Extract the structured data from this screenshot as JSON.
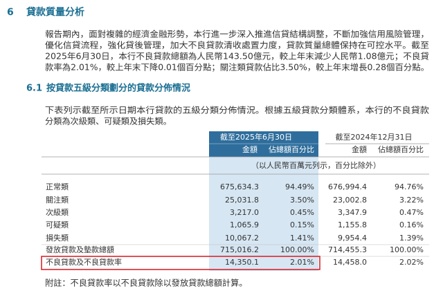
{
  "section": {
    "number": "6",
    "title": "貸款質量分析"
  },
  "paragraph1": [
    "報告期內，面對複雜的經濟金融形勢，本行進一步深入推進信貸結構調整，不斷加強信用風險管理，",
    "優化信貸流程，強化貸後管理，加大不良貸款清收處置力度，貸款質量總體保持在可控水平。截至",
    "2025年6月30日，本行不良貸款總額為人民幣143.50億元，較上年末減少人民幣1.08億元；不良貸",
    "款率為2.01%，較上年末下降0.01個百分點；關注類貸款佔比3.50%，較上年末增長0.28個百分點。"
  ],
  "subsection": {
    "number": "6.1",
    "title": "按貸款五級分類劃分的貸款分佈情況"
  },
  "paragraph2": [
    "下表列示截至所示日期本行貸款的五級分類分佈情況。根據五級貸款分類體系，本行的不良貸款",
    "分類為次級類、可疑類及損失類。"
  ],
  "table": {
    "period_headers": [
      "截至2025年6月30日",
      "截至2024年12月31日"
    ],
    "column_headers": [
      "金額",
      "佔總額百分比",
      "金額",
      "佔總額百分比"
    ],
    "unit": "（以人民幣百萬元列示，百分比除外）",
    "rows": [
      [
        "正常類",
        "675,634.3",
        "94.49%",
        "676,994.4",
        "94.76%"
      ],
      [
        "關注類",
        "25,031.8",
        "3.50%",
        "23,002.8",
        "3.22%"
      ],
      [
        "次級類",
        "3,217.0",
        "0.45%",
        "3,347.9",
        "0.47%"
      ],
      [
        "可疑類",
        "1,065.9",
        "0.15%",
        "1,155.8",
        "0.16%"
      ],
      [
        "損失類",
        "10,067.2",
        "1.41%",
        "9,954.4",
        "1.39%"
      ],
      [
        "發放貸款及墊款總額",
        "715,016.2",
        "100.00%",
        "714,455.3",
        "100.00%"
      ],
      [
        "不良貸款及不良貸款率",
        "14,350.1",
        "2.01%",
        "14,458.0",
        "2.02%"
      ]
    ]
  },
  "note": "附註：不良貸款率以不良貸款除以發放貸款總額計算。"
}
